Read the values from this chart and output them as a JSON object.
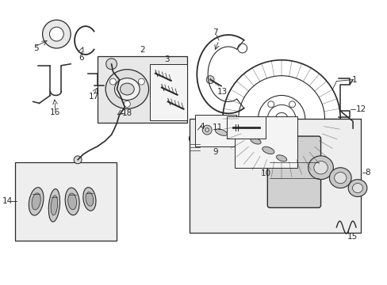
{
  "title": "",
  "bg_color": "#ffffff",
  "lc": "#2a2a2a",
  "bc": "#e8e8e8",
  "fig_width": 4.89,
  "fig_height": 3.6,
  "dpi": 100
}
